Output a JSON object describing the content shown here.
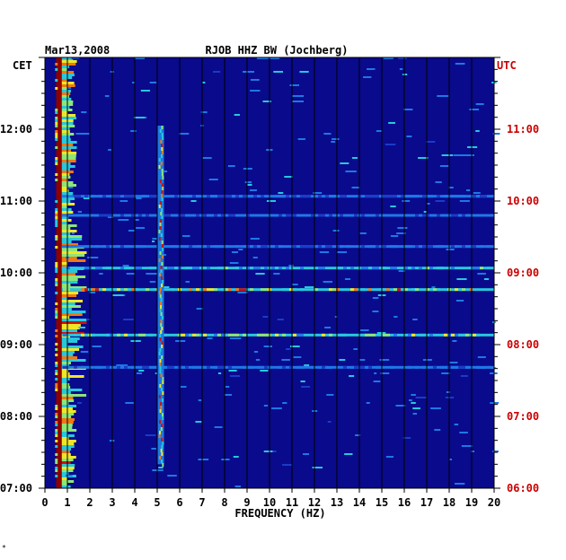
{
  "chart_data": {
    "type": "heatmap",
    "date": "Mar13,2008",
    "title": "RJOB HHZ BW (Jochberg)",
    "xlabel": "FREQUENCY (HZ)",
    "xlim": [
      0,
      20
    ],
    "x_ticks": [
      "0",
      "1",
      "2",
      "3",
      "4",
      "5",
      "6",
      "7",
      "8",
      "9",
      "10",
      "11",
      "12",
      "13",
      "14",
      "15",
      "16",
      "17",
      "18",
      "19",
      "20"
    ],
    "left_axis_label": "CET",
    "right_axis_label": "UTC",
    "left_ticks": [
      "07:00",
      "08:00",
      "09:00",
      "10:00",
      "11:00",
      "12:00"
    ],
    "right_ticks": [
      "06:00",
      "07:00",
      "08:00",
      "09:00",
      "10:00",
      "11:00"
    ],
    "time_range_cet_hours": [
      7.0,
      13.0
    ],
    "background_color": "#0a0a8c",
    "low_freq_color": "#8b0000",
    "utc_label_color": "#cc0000",
    "horizontal_lines": [
      {
        "time_cet": "09:46",
        "intensity": 0.9
      },
      {
        "time_cet": "09:08",
        "intensity": 0.75
      },
      {
        "time_cet": "10:04",
        "intensity": 0.55
      },
      {
        "time_cet": "10:22",
        "intensity": 0.35
      },
      {
        "time_cet": "08:41",
        "intensity": 0.35
      },
      {
        "time_cet": "10:48",
        "intensity": 0.3
      },
      {
        "time_cet": "11:04",
        "intensity": 0.3
      }
    ],
    "vertical_feature": {
      "freq_hz": 5.1,
      "time_cet_range": [
        "07:20",
        "12:03"
      ]
    }
  },
  "footer_mark": "*"
}
